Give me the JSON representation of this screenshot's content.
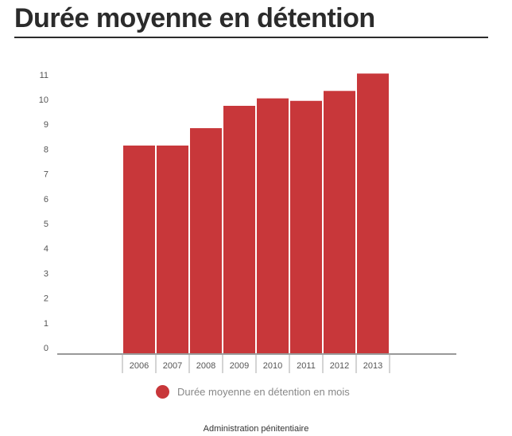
{
  "title": "Durée moyenne en détention",
  "colors": {
    "bar": "#c8373a",
    "axis": "#999999",
    "tick_text": "#555555"
  },
  "chart_data": {
    "type": "bar",
    "categories": [
      "2006",
      "2007",
      "2008",
      "2009",
      "2010",
      "2011",
      "2012",
      "2013"
    ],
    "series": [
      {
        "name": "Durée moyenne en détention en mois",
        "values": [
          8.4,
          8.4,
          9.1,
          10.0,
          10.3,
          10.2,
          10.6,
          11.3
        ]
      }
    ],
    "yticks": [
      0,
      1,
      2,
      3,
      4,
      5,
      6,
      7,
      8,
      9,
      10,
      11
    ],
    "ylim": [
      0,
      11.6
    ],
    "grid": false,
    "legend_position": "bottom"
  },
  "legend": {
    "label": "Durée moyenne en détention en mois"
  },
  "source": "Administration pénitentiaire"
}
